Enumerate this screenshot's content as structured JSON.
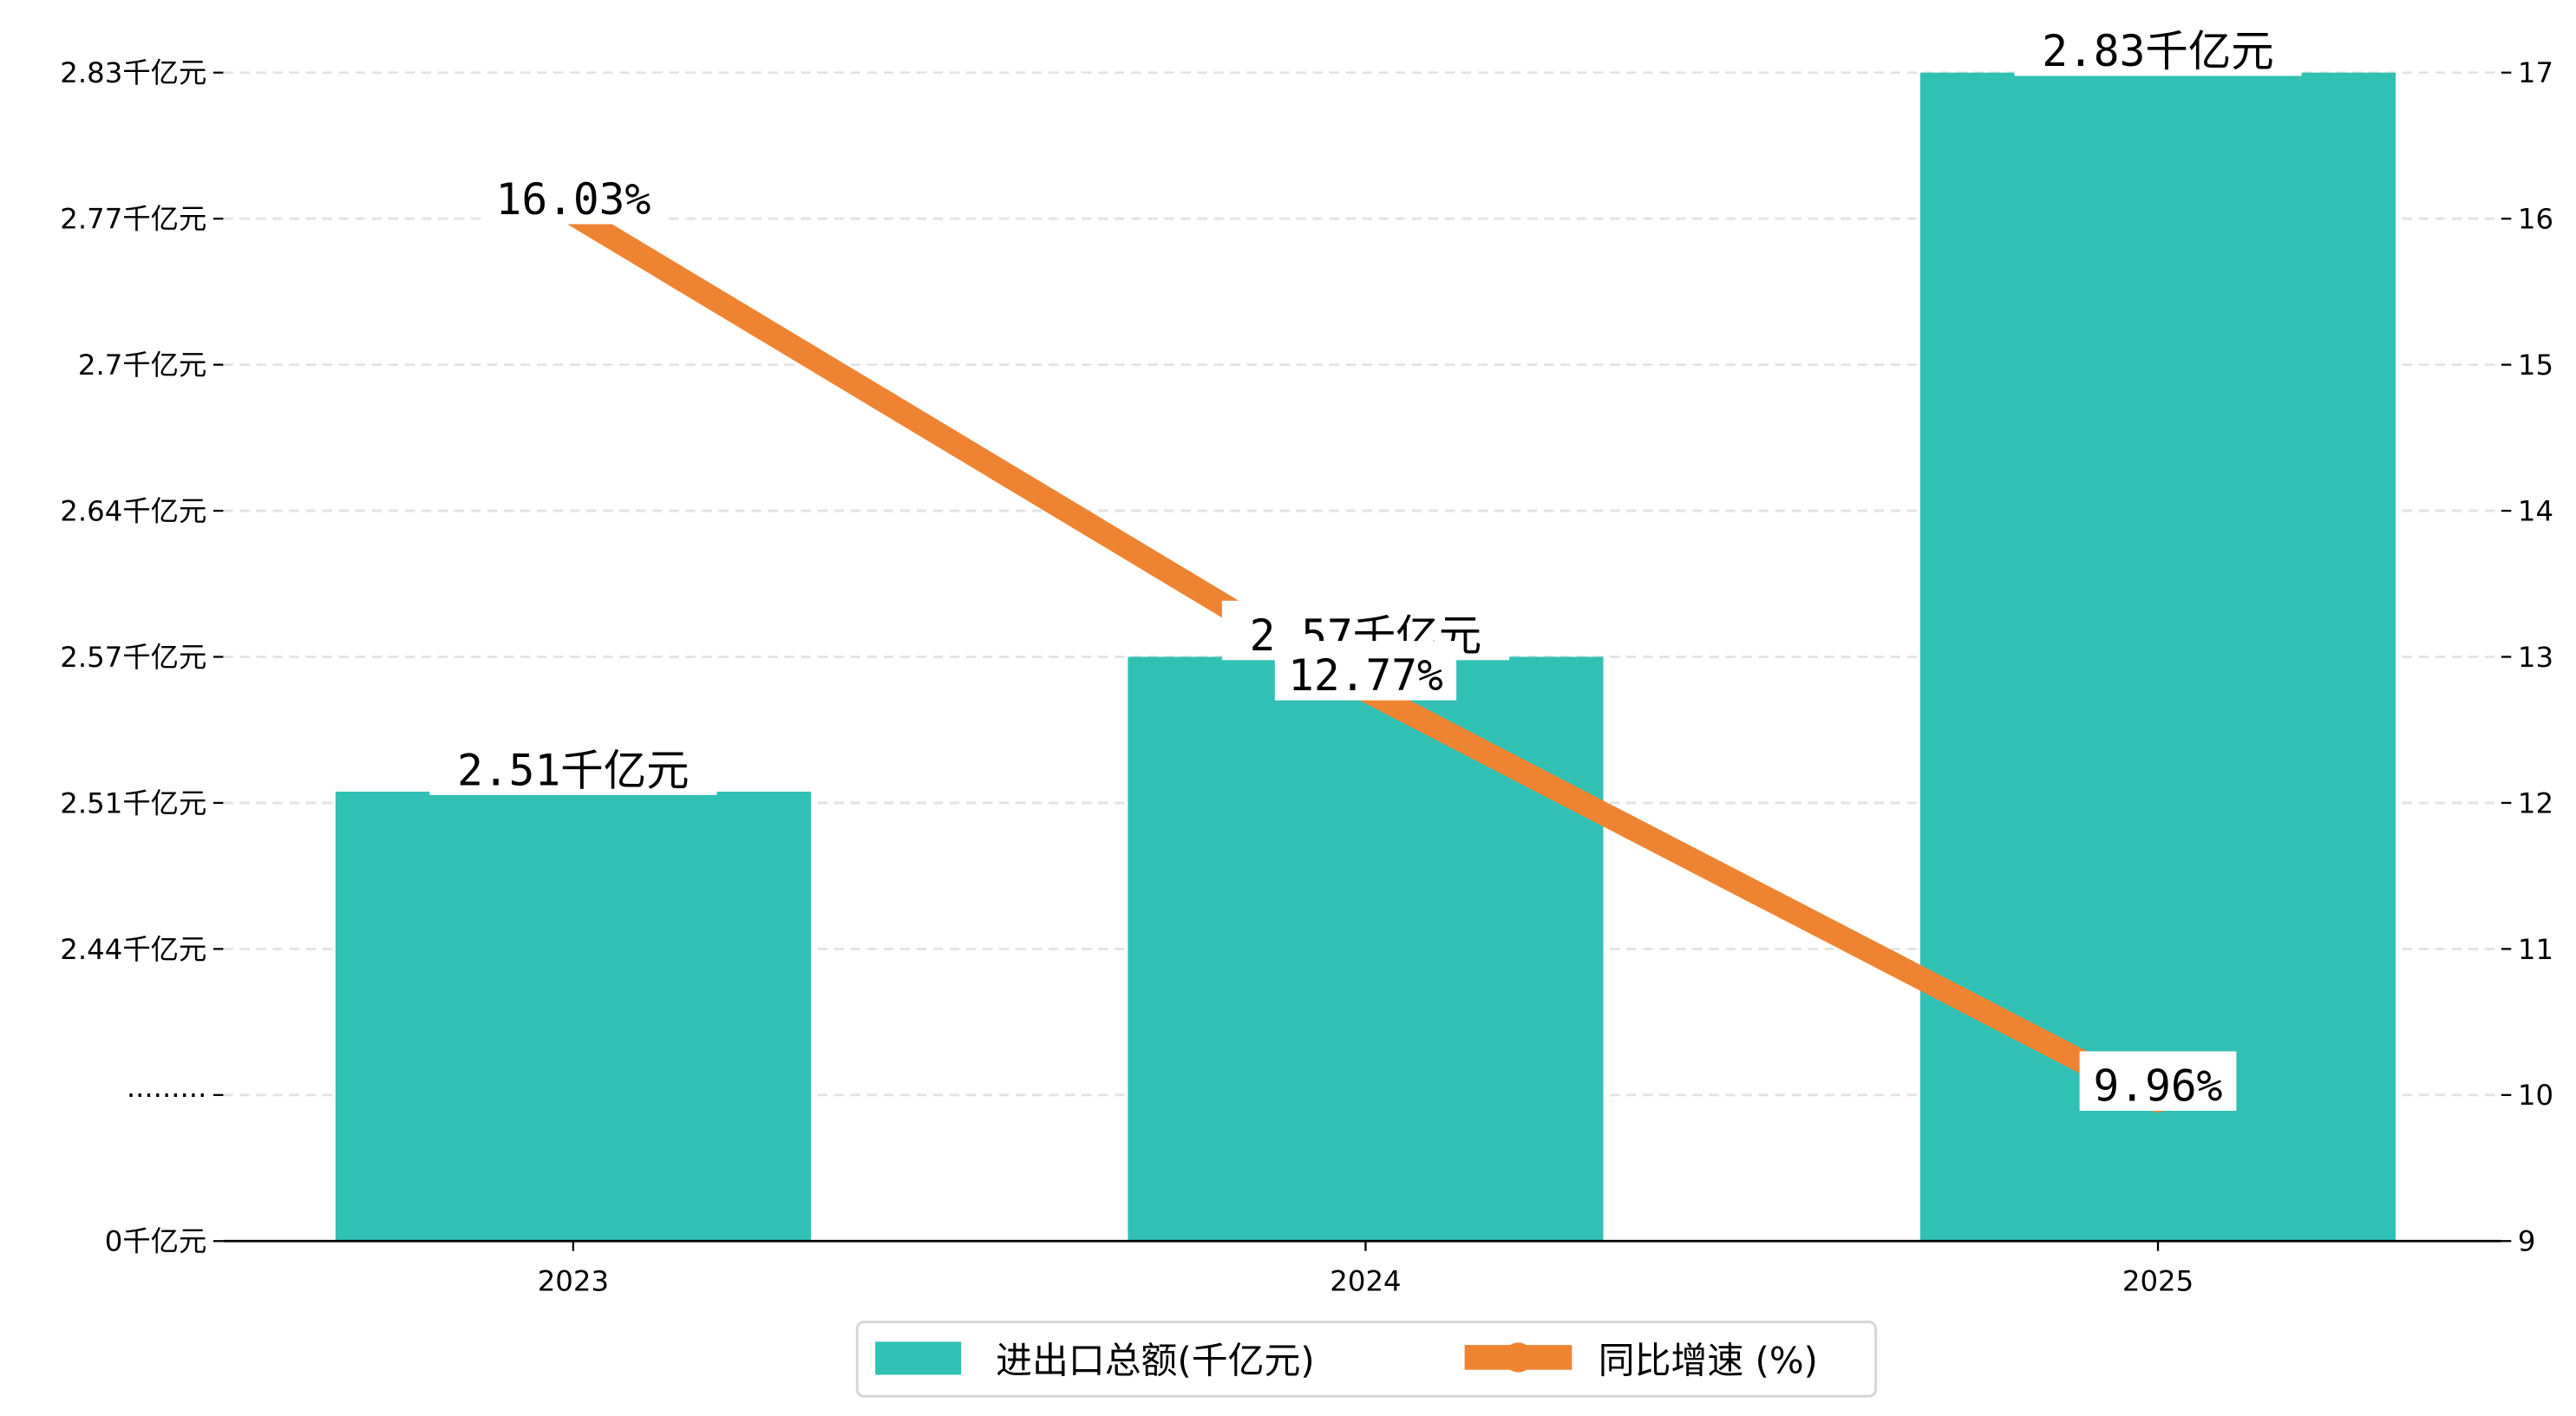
{
  "chart_data": {
    "type": "bar",
    "title": "",
    "categories": [
      "2023",
      "2024",
      "2025"
    ],
    "series": [
      {
        "name": "进出口总额(千亿元)",
        "type": "bar",
        "axis": "left",
        "values": [
          2.51,
          2.57,
          2.83
        ],
        "labels": [
          "2.51千亿元",
          "2.57千亿元",
          "2.83千亿元"
        ],
        "color": "#31c0b4"
      },
      {
        "name": "同比增速 (%)",
        "type": "line",
        "axis": "right",
        "values": [
          16.03,
          12.77,
          9.96
        ],
        "labels": [
          "16.03%",
          "12.77%",
          "9.96%"
        ],
        "color": "#ee8432"
      }
    ],
    "left_axis": {
      "ticks": [
        "2.83千亿元",
        "2.77千亿元",
        "2.7千亿元",
        "2.64千亿元",
        "2.57千亿元",
        "2.51千亿元",
        "2.44千亿元",
        "·········",
        "0千亿元"
      ],
      "ylim": [
        2.31,
        2.83
      ],
      "broken": true
    },
    "right_axis": {
      "ticks": [
        "17",
        "16",
        "15",
        "14",
        "13",
        "12",
        "11",
        "10",
        "9"
      ],
      "ylim": [
        9,
        17
      ]
    },
    "grid": true,
    "legend": {
      "placement": "bottom-center",
      "entries": [
        "进出口总额(千亿元)",
        "同比增速 (%)"
      ]
    }
  }
}
